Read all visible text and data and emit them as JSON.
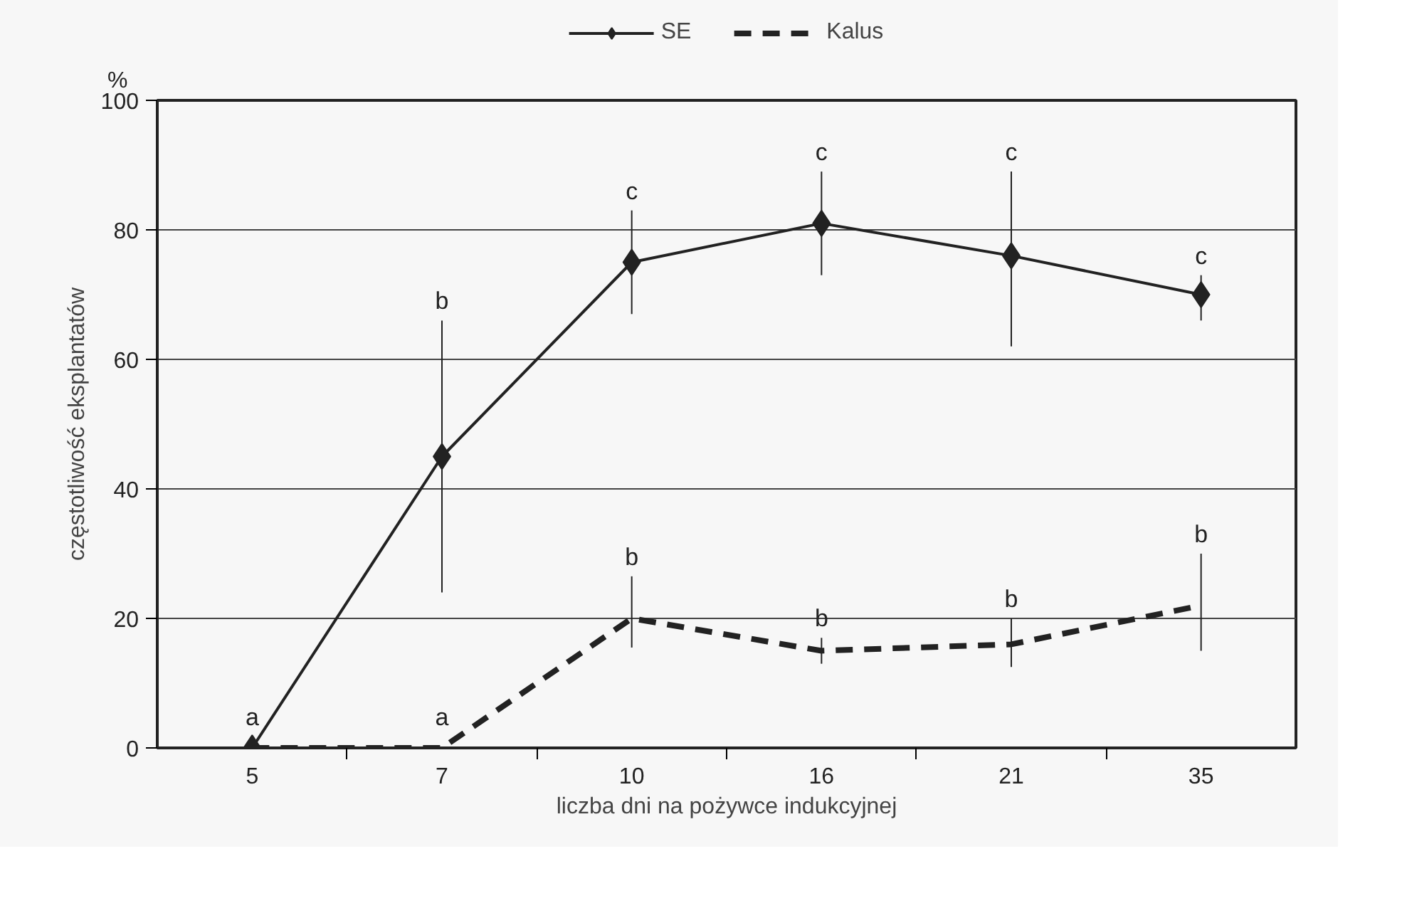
{
  "chart_data": {
    "type": "line",
    "xlabel": "liczba dni na pożywce indukcyjnej",
    "ylabel": "częstotliwość eksplantatów",
    "categories": [
      "5",
      "7",
      "10",
      "16",
      "21",
      "35"
    ],
    "ylim": [
      0,
      100
    ],
    "yticks": [
      0,
      20,
      40,
      60,
      80,
      100
    ],
    "grid": "y",
    "legend": "top",
    "series": [
      {
        "name": "SE",
        "color": "#222222",
        "marker": "diamond",
        "line_style": "solid",
        "values": [
          0,
          45,
          75,
          81,
          76,
          70
        ],
        "errors": [
          null,
          [
            24,
            66
          ],
          [
            67,
            83
          ],
          [
            73,
            89
          ],
          [
            62,
            89
          ],
          [
            66,
            73
          ]
        ]
      },
      {
        "name": "Kalus",
        "color": "#222222",
        "marker": "none",
        "line_style": "dashed",
        "values": [
          0,
          0,
          20,
          15,
          16,
          22
        ],
        "errors": [
          null,
          null,
          [
            15.5,
            26.5
          ],
          [
            13,
            17
          ],
          [
            12.5,
            20
          ],
          [
            15,
            30
          ]
        ]
      }
    ],
    "annotations": [
      "%",
      {
        "text": "a",
        "x": "5",
        "y": 0
      },
      {
        "text": "a",
        "x": "7",
        "y": 0
      },
      {
        "text": "b",
        "x": "7",
        "y": 66
      },
      {
        "text": "c",
        "x": "10",
        "y": 83
      },
      {
        "text": "c",
        "x": "16",
        "y": 89
      },
      {
        "text": "c",
        "x": "21",
        "y": 89
      },
      {
        "text": "c",
        "x": "35",
        "y": 73
      },
      {
        "text": "b",
        "x": "10",
        "y": 26.5
      },
      {
        "text": "b",
        "x": "16",
        "y": 17
      },
      {
        "text": "b",
        "x": "21",
        "y": 20
      },
      {
        "text": "b",
        "x": "35",
        "y": 30
      }
    ]
  }
}
